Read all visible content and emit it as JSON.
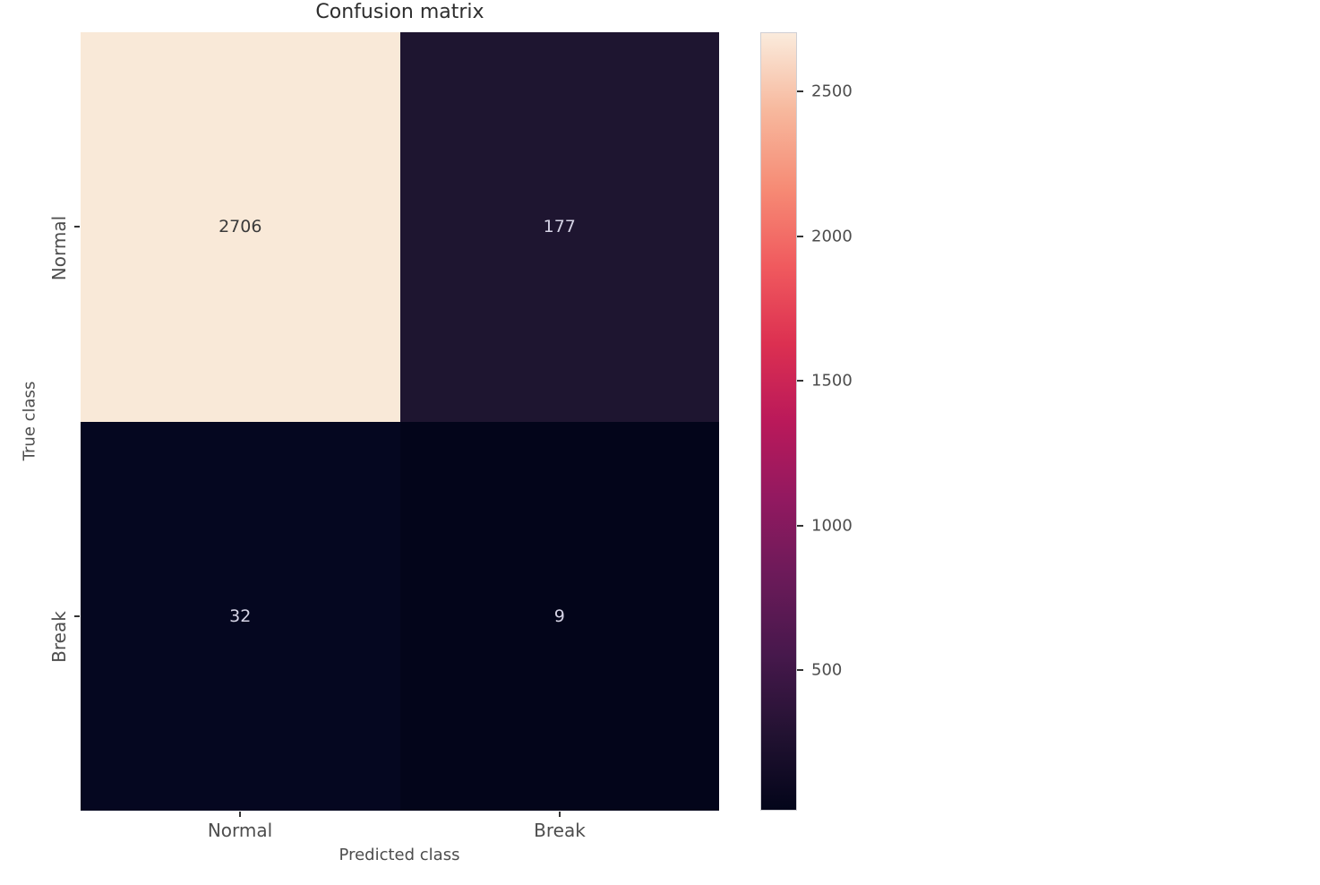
{
  "chart_data": {
    "type": "heatmap",
    "title": "Confusion matrix",
    "xlabel": "Predicted class",
    "ylabel": "True class",
    "x_categories": [
      "Normal",
      "Break"
    ],
    "y_categories": [
      "Normal",
      "Break"
    ],
    "values": [
      [
        2706,
        177
      ],
      [
        32,
        9
      ]
    ],
    "vmin": 9,
    "vmax": 2706,
    "colormap": "rocket",
    "grid": false,
    "cell_colors": [
      [
        "#f9e9d8",
        "#1e1530"
      ],
      [
        "#050720",
        "#03051a"
      ]
    ],
    "annot_colors": [
      [
        "#3b3b3b",
        "#d6d4e6"
      ],
      [
        "#d6d4e6",
        "#d6d4e6"
      ]
    ],
    "colorbar": {
      "position": "right",
      "ticks": [
        500,
        1000,
        1500,
        2000,
        2500
      ],
      "gradient_stops_bottom_to_top": [
        "#03051a",
        "#231232",
        "#47184c",
        "#6b1a59",
        "#921960",
        "#ba195a",
        "#dc3051",
        "#f05a5e",
        "#f68b75",
        "#f7b89d",
        "#faebdc"
      ]
    }
  },
  "colors": {
    "background": "#ffffff",
    "title_text": "#2d2d2d",
    "tick_text": "#4d4d4d",
    "tick_mark": "#333333",
    "colorbar_border": "#cfcfd4"
  }
}
